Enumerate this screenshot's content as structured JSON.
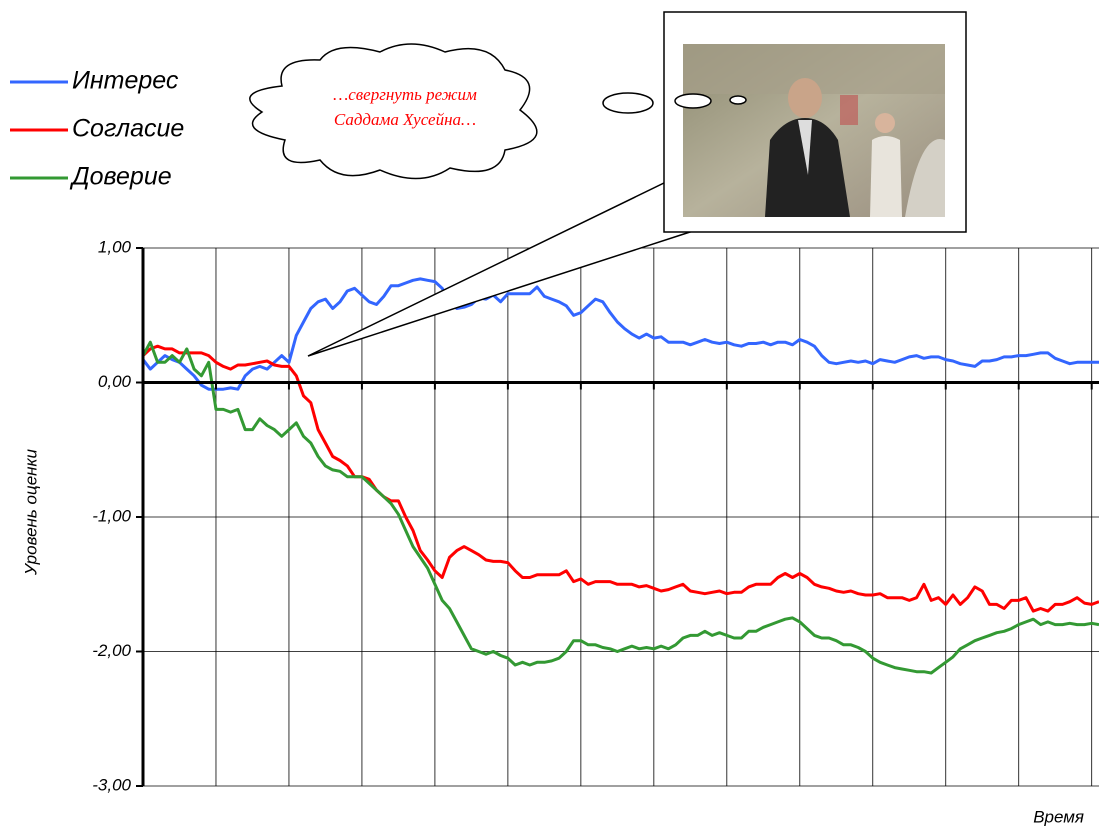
{
  "chart_data": {
    "type": "line",
    "y_label": "Уровень оценки",
    "x_label": "Время",
    "annotation": [
      "…свергнуть режим",
      "Саддама Хусейна…"
    ],
    "ylim": [
      -3,
      1
    ],
    "yticks": [
      {
        "value": -3,
        "label": "-3,00"
      },
      {
        "value": -2,
        "label": "-2,00"
      },
      {
        "value": -1,
        "label": "-1,00"
      },
      {
        "value": 0,
        "label": "0,00"
      },
      {
        "value": 1,
        "label": "1,00"
      }
    ],
    "grid": true,
    "x_grid_every": 10,
    "legend": "upper left",
    "series": [
      {
        "name": "Интерес",
        "color": "#3366ff",
        "values": [
          0.17,
          0.1,
          0.15,
          0.2,
          0.17,
          0.15,
          0.1,
          0.05,
          -0.02,
          -0.05,
          -0.05,
          -0.05,
          -0.04,
          -0.05,
          0.05,
          0.1,
          0.12,
          0.1,
          0.15,
          0.2,
          0.15,
          0.35,
          0.45,
          0.55,
          0.6,
          0.62,
          0.55,
          0.6,
          0.68,
          0.7,
          0.65,
          0.6,
          0.58,
          0.64,
          0.72,
          0.72,
          0.74,
          0.76,
          0.77,
          0.76,
          0.75,
          0.7,
          0.6,
          0.55,
          0.56,
          0.58,
          0.63,
          0.62,
          0.65,
          0.6,
          0.66,
          0.66,
          0.66,
          0.66,
          0.71,
          0.64,
          0.62,
          0.6,
          0.57,
          0.5,
          0.52,
          0.57,
          0.62,
          0.6,
          0.52,
          0.45,
          0.4,
          0.36,
          0.33,
          0.36,
          0.33,
          0.34,
          0.3,
          0.3,
          0.3,
          0.28,
          0.3,
          0.32,
          0.3,
          0.29,
          0.3,
          0.28,
          0.27,
          0.29,
          0.29,
          0.3,
          0.28,
          0.3,
          0.3,
          0.28,
          0.32,
          0.3,
          0.27,
          0.2,
          0.15,
          0.14,
          0.15,
          0.16,
          0.15,
          0.16,
          0.14,
          0.17,
          0.16,
          0.15,
          0.17,
          0.19,
          0.2,
          0.18,
          0.19,
          0.19,
          0.17,
          0.16,
          0.14,
          0.13,
          0.12,
          0.16,
          0.16,
          0.17,
          0.19,
          0.19,
          0.2,
          0.2,
          0.21,
          0.22,
          0.22,
          0.18,
          0.16,
          0.14,
          0.15,
          0.15,
          0.15,
          0.15
        ]
      },
      {
        "name": "Согласие",
        "color": "#ff0000",
        "values": [
          0.2,
          0.25,
          0.27,
          0.25,
          0.25,
          0.22,
          0.22,
          0.22,
          0.22,
          0.2,
          0.15,
          0.12,
          0.1,
          0.13,
          0.13,
          0.14,
          0.15,
          0.16,
          0.13,
          0.12,
          0.12,
          0.05,
          -0.1,
          -0.15,
          -0.35,
          -0.45,
          -0.55,
          -0.58,
          -0.62,
          -0.7,
          -0.7,
          -0.72,
          -0.8,
          -0.85,
          -0.88,
          -0.88,
          -1.0,
          -1.1,
          -1.25,
          -1.32,
          -1.4,
          -1.45,
          -1.3,
          -1.25,
          -1.22,
          -1.25,
          -1.28,
          -1.32,
          -1.33,
          -1.33,
          -1.34,
          -1.4,
          -1.45,
          -1.45,
          -1.43,
          -1.43,
          -1.43,
          -1.43,
          -1.4,
          -1.48,
          -1.46,
          -1.5,
          -1.48,
          -1.48,
          -1.48,
          -1.5,
          -1.5,
          -1.5,
          -1.52,
          -1.51,
          -1.53,
          -1.55,
          -1.54,
          -1.52,
          -1.5,
          -1.55,
          -1.56,
          -1.57,
          -1.56,
          -1.55,
          -1.57,
          -1.56,
          -1.56,
          -1.52,
          -1.5,
          -1.5,
          -1.5,
          -1.45,
          -1.42,
          -1.45,
          -1.42,
          -1.45,
          -1.5,
          -1.52,
          -1.53,
          -1.55,
          -1.56,
          -1.55,
          -1.57,
          -1.58,
          -1.58,
          -1.57,
          -1.6,
          -1.6,
          -1.6,
          -1.62,
          -1.6,
          -1.5,
          -1.62,
          -1.6,
          -1.65,
          -1.58,
          -1.65,
          -1.6,
          -1.52,
          -1.55,
          -1.65,
          -1.65,
          -1.68,
          -1.62,
          -1.62,
          -1.6,
          -1.7,
          -1.68,
          -1.7,
          -1.65,
          -1.65,
          -1.63,
          -1.6,
          -1.64,
          -1.65,
          -1.63
        ]
      },
      {
        "name": "Доверие",
        "color": "#339933",
        "values": [
          0.2,
          0.3,
          0.15,
          0.15,
          0.2,
          0.15,
          0.25,
          0.1,
          0.05,
          0.15,
          -0.2,
          -0.2,
          -0.22,
          -0.2,
          -0.35,
          -0.35,
          -0.27,
          -0.32,
          -0.35,
          -0.4,
          -0.35,
          -0.3,
          -0.4,
          -0.45,
          -0.55,
          -0.62,
          -0.65,
          -0.66,
          -0.7,
          -0.7,
          -0.7,
          -0.75,
          -0.8,
          -0.85,
          -0.9,
          -0.98,
          -1.1,
          -1.22,
          -1.3,
          -1.38,
          -1.5,
          -1.62,
          -1.68,
          -1.78,
          -1.88,
          -1.98,
          -2.0,
          -2.02,
          -2.0,
          -2.03,
          -2.05,
          -2.1,
          -2.08,
          -2.1,
          -2.08,
          -2.08,
          -2.07,
          -2.05,
          -2.0,
          -1.92,
          -1.92,
          -1.95,
          -1.95,
          -1.97,
          -1.98,
          -2.0,
          -1.98,
          -1.96,
          -1.98,
          -1.97,
          -1.98,
          -1.96,
          -1.98,
          -1.95,
          -1.9,
          -1.88,
          -1.88,
          -1.85,
          -1.88,
          -1.86,
          -1.88,
          -1.9,
          -1.9,
          -1.85,
          -1.85,
          -1.82,
          -1.8,
          -1.78,
          -1.76,
          -1.75,
          -1.78,
          -1.83,
          -1.88,
          -1.9,
          -1.9,
          -1.92,
          -1.95,
          -1.95,
          -1.97,
          -2.0,
          -2.05,
          -2.08,
          -2.1,
          -2.12,
          -2.13,
          -2.14,
          -2.15,
          -2.15,
          -2.16,
          -2.12,
          -2.08,
          -2.04,
          -1.98,
          -1.95,
          -1.92,
          -1.9,
          -1.88,
          -1.86,
          -1.85,
          -1.83,
          -1.8,
          -1.78,
          -1.76,
          -1.8,
          -1.78,
          -1.8,
          -1.8,
          -1.79,
          -1.8,
          -1.8,
          -1.79,
          -1.8
        ]
      }
    ]
  }
}
